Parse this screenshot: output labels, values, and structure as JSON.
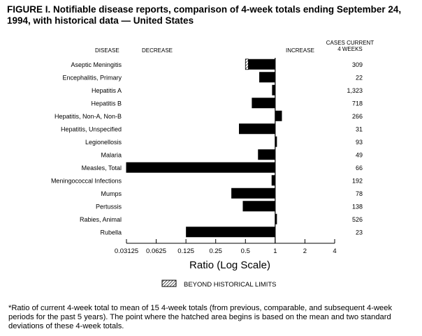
{
  "title": "FIGURE I. Notifiable disease reports, comparison of 4-week totals ending September 24, 1994, with historical data — United States",
  "headers": {
    "disease": "DISEASE",
    "decrease": "DECREASE",
    "increase": "INCREASE",
    "cases_line1": "CASES CURRENT",
    "cases_line2": "4 WEEKS"
  },
  "legend_label": "BEYOND HISTORICAL LIMITS",
  "footnote": "*Ratio of current 4-week total to mean of 15 4-week totals (from previous, comparable, and subsequent 4-week periods for the past 5 years). The point where the hatched area begins is based on the mean and two standard deviations of these 4-week totals.",
  "colors": {
    "bar": "#000000",
    "background": "#ffffff"
  },
  "chart_data": {
    "type": "bar",
    "orientation": "horizontal",
    "title": "Notifiable disease reports, comparison of 4-week totals ending September 24, 1994, with historical data",
    "xlabel": "Ratio (Log Scale)",
    "xscale": "log2",
    "xlim": [
      0.03125,
      4
    ],
    "xticks": [
      "0.03125",
      "0.0625",
      "0.125",
      "0.25",
      "0.5",
      "1",
      "2",
      "4"
    ],
    "reference_line": 1,
    "categories": [
      "Aseptic Meningitis",
      "Encephalitis, Primary",
      "Hepatitis A",
      "Hepatitis B",
      "Hepatitis, Non-A, Non-B",
      "Hepatitis, Unspecified",
      "Legionellosis",
      "Malaria",
      "Measles, Total",
      "Meningococcal Infections",
      "Mumps",
      "Pertussis",
      "Rabies, Animal",
      "Rubella"
    ],
    "values": [
      0.5,
      0.69,
      0.93,
      0.58,
      1.17,
      0.43,
      1.03,
      0.67,
      0.031,
      0.92,
      0.36,
      0.47,
      1.04,
      0.125
    ],
    "beyond_historical_limits_from": [
      0.535,
      null,
      null,
      null,
      null,
      null,
      null,
      null,
      null,
      null,
      null,
      null,
      null,
      null
    ],
    "cases_current_4_weeks": [
      "309",
      "22",
      "1,323",
      "718",
      "266",
      "31",
      "93",
      "49",
      "66",
      "192",
      "78",
      "138",
      "526",
      "23"
    ]
  }
}
